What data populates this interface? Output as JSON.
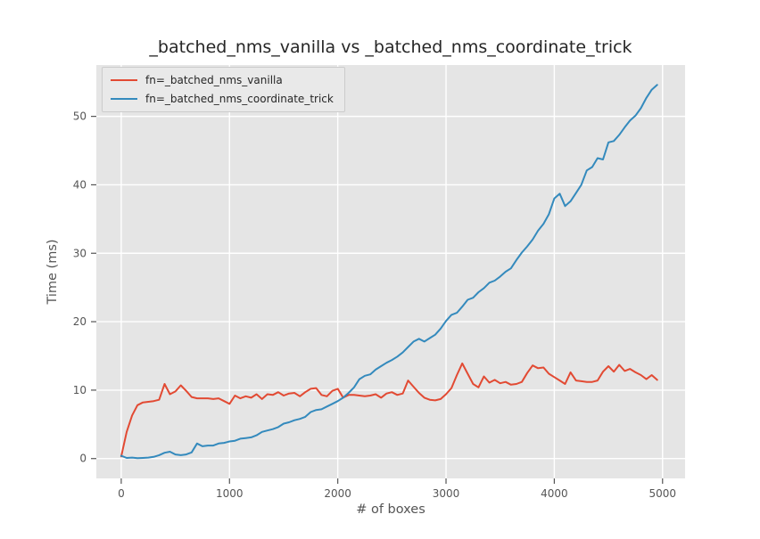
{
  "title": "_batched_nms_vanilla vs _batched_nms_coordinate_trick",
  "colors": {
    "figure_background": "#ffffff",
    "axes_background": "#e5e5e5",
    "grid": "#ffffff",
    "tick_text": "#555555",
    "title_text": "#262626",
    "legend_background": "#e9e9e9",
    "legend_border": "#cccccc",
    "series_vanilla": "#e24a33",
    "series_coordinate_trick": "#348abd"
  },
  "chart_data": {
    "type": "line",
    "title": "_batched_nms_vanilla vs _batched_nms_coordinate_trick",
    "xlabel": "# of boxes",
    "ylabel": "Time (ms)",
    "xlim": [
      -230,
      5208
    ],
    "ylim": [
      -2.9,
      57.5
    ],
    "x_ticks": [
      0,
      1000,
      2000,
      3000,
      4000,
      5000
    ],
    "y_ticks": [
      0,
      10,
      20,
      30,
      40,
      50
    ],
    "grid": true,
    "legend_position": "upper left",
    "x": [
      0,
      50,
      100,
      150,
      200,
      250,
      300,
      350,
      400,
      450,
      500,
      550,
      600,
      650,
      700,
      750,
      800,
      850,
      900,
      950,
      1000,
      1050,
      1100,
      1150,
      1200,
      1250,
      1300,
      1350,
      1400,
      1450,
      1500,
      1550,
      1600,
      1650,
      1700,
      1750,
      1800,
      1850,
      1900,
      1950,
      2000,
      2050,
      2100,
      2150,
      2200,
      2250,
      2300,
      2350,
      2400,
      2450,
      2500,
      2550,
      2600,
      2650,
      2700,
      2750,
      2800,
      2850,
      2900,
      2950,
      3000,
      3050,
      3100,
      3150,
      3200,
      3250,
      3300,
      3350,
      3400,
      3450,
      3500,
      3550,
      3600,
      3650,
      3700,
      3750,
      3800,
      3850,
      3900,
      3950,
      4000,
      4050,
      4100,
      4150,
      4200,
      4250,
      4300,
      4350,
      4400,
      4450,
      4500,
      4550,
      4600,
      4650,
      4700,
      4750,
      4800,
      4850,
      4900,
      4950
    ],
    "series": [
      {
        "name": "fn=_batched_nms_vanilla",
        "color": "#e24a33",
        "values": [
          0.3,
          3.9,
          6.3,
          7.8,
          8.2,
          8.3,
          8.4,
          8.6,
          10.9,
          9.4,
          9.8,
          10.7,
          9.9,
          9.0,
          8.8,
          8.8,
          8.8,
          8.7,
          8.8,
          8.4,
          8.0,
          9.2,
          8.8,
          9.1,
          8.9,
          9.4,
          8.7,
          9.4,
          9.3,
          9.7,
          9.2,
          9.5,
          9.6,
          9.1,
          9.7,
          10.2,
          10.3,
          9.3,
          9.1,
          9.9,
          10.2,
          8.9,
          9.3,
          9.3,
          9.2,
          9.1,
          9.2,
          9.4,
          8.9,
          9.5,
          9.7,
          9.3,
          9.5,
          11.4,
          10.5,
          9.6,
          8.9,
          8.6,
          8.5,
          8.7,
          9.4,
          10.3,
          12.2,
          13.9,
          12.4,
          10.9,
          10.4,
          12.0,
          11.1,
          11.5,
          11.0,
          11.2,
          10.8,
          10.9,
          11.2,
          12.5,
          13.6,
          13.2,
          13.3,
          12.4,
          11.9,
          11.4,
          10.9,
          12.6,
          11.4,
          11.3,
          11.2,
          11.2,
          11.4,
          12.7,
          13.5,
          12.7,
          13.7,
          12.8,
          13.1,
          12.6,
          12.2,
          11.6,
          12.2,
          11.5
        ]
      },
      {
        "name": "fn=_batched_nms_coordinate_trick",
        "color": "#348abd",
        "values": [
          0.4,
          0.1,
          0.15,
          0.05,
          0.1,
          0.15,
          0.25,
          0.5,
          0.85,
          1.0,
          0.6,
          0.5,
          0.6,
          0.9,
          2.2,
          1.8,
          1.9,
          1.9,
          2.2,
          2.3,
          2.5,
          2.6,
          2.9,
          3.0,
          3.1,
          3.4,
          3.9,
          4.1,
          4.3,
          4.6,
          5.1,
          5.3,
          5.6,
          5.8,
          6.1,
          6.8,
          7.1,
          7.2,
          7.6,
          8.0,
          8.4,
          8.9,
          9.6,
          10.4,
          11.6,
          12.1,
          12.3,
          13.0,
          13.5,
          14.0,
          14.4,
          14.9,
          15.5,
          16.3,
          17.1,
          17.5,
          17.1,
          17.6,
          18.1,
          19.0,
          20.1,
          21.0,
          21.3,
          22.2,
          23.2,
          23.5,
          24.3,
          24.9,
          25.7,
          26.0,
          26.6,
          27.3,
          27.8,
          29.0,
          30.1,
          31.0,
          32.0,
          33.3,
          34.3,
          35.7,
          38.0,
          38.7,
          36.9,
          37.6,
          38.8,
          40.0,
          42.1,
          42.6,
          43.9,
          43.7,
          46.2,
          46.4,
          47.3,
          48.4,
          49.4,
          50.1,
          51.2,
          52.7,
          53.9,
          54.6
        ]
      }
    ]
  }
}
